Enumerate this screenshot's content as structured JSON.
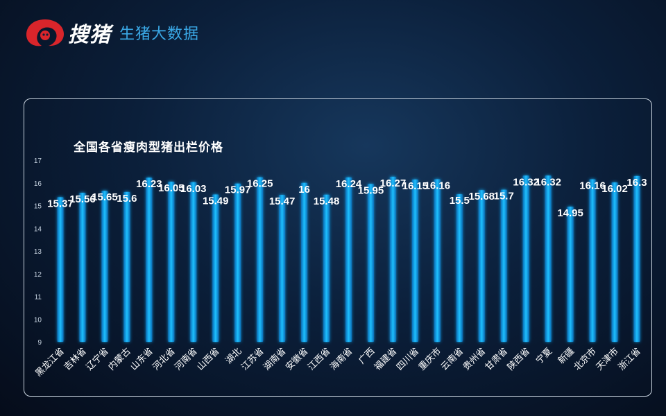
{
  "brand": {
    "name": "搜猪",
    "subtitle": "生猪大数据"
  },
  "colors": {
    "bar": "#16b4f2",
    "bar_glow": "#0f8fd6",
    "accent": "#3aa8e6",
    "logo_red": "#d9252b"
  },
  "chart_data": {
    "type": "bar",
    "title": "全国各省瘦肉型猪出栏价格",
    "xlabel": "",
    "ylabel": "",
    "ylim": [
      9,
      17
    ],
    "yticks": [
      9,
      10,
      11,
      12,
      13,
      14,
      15,
      16,
      17
    ],
    "grid": false,
    "categories": [
      "黑龙江省",
      "吉林省",
      "辽宁省",
      "内蒙古",
      "山东省",
      "河北省",
      "河南省",
      "山西省",
      "湖北",
      "江苏省",
      "湖南省",
      "安徽省",
      "江西省",
      "海南省",
      "广西",
      "福建省",
      "四川省",
      "重庆市",
      "云南省",
      "贵州省",
      "甘肃省",
      "陕西省",
      "宁夏",
      "新疆",
      "北京市",
      "天津市",
      "浙江省"
    ],
    "values": [
      15.37,
      15.56,
      15.65,
      15.6,
      16.23,
      16.05,
      16.03,
      15.49,
      15.97,
      16.25,
      15.47,
      16,
      15.48,
      16.24,
      15.95,
      16.27,
      16.15,
      16.16,
      15.5,
      15.68,
      15.7,
      16.32,
      16.32,
      14.95,
      16.16,
      16.02,
      16.3
    ],
    "labels": [
      "15.37",
      "15.56",
      "15.65",
      "15.6",
      "16.23",
      "16.05",
      "16.03",
      "15.49",
      "15.97",
      "16.25",
      "15.47",
      "16",
      "15.48",
      "16.24",
      "15.95",
      "16.27",
      "16.15",
      "16.16",
      "15.5",
      "15.68",
      "15.7",
      "16.32",
      "16.32",
      "14.95",
      "16.16",
      "16.02",
      "16.3"
    ]
  }
}
